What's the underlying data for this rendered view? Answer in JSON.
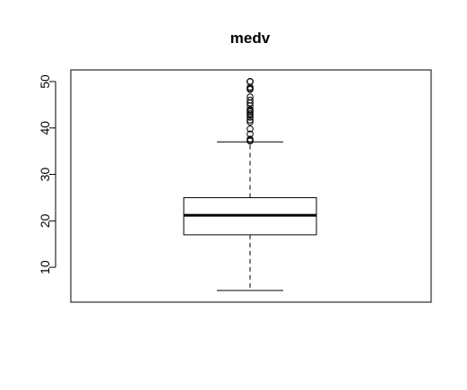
{
  "chart_data": {
    "type": "boxplot",
    "title": "medv",
    "xlabel": "",
    "ylabel": "",
    "ylim": [
      2.5,
      52.5
    ],
    "yticks": [
      10,
      20,
      30,
      40,
      50
    ],
    "ytick_labels": [
      "10",
      "20",
      "30",
      "40",
      "50"
    ],
    "box": {
      "whisker_low": 5.0,
      "q1": 17.0,
      "median": 21.2,
      "q3": 25.0,
      "whisker_high": 37.0
    },
    "outliers": [
      37.2,
      37.3,
      37.6,
      38.7,
      39.8,
      41.3,
      41.7,
      42.3,
      42.8,
      43.1,
      43.5,
      43.8,
      44.0,
      44.8,
      45.4,
      46.0,
      46.7,
      48.3,
      48.5,
      48.8,
      50.0,
      50.0,
      50.0
    ]
  }
}
